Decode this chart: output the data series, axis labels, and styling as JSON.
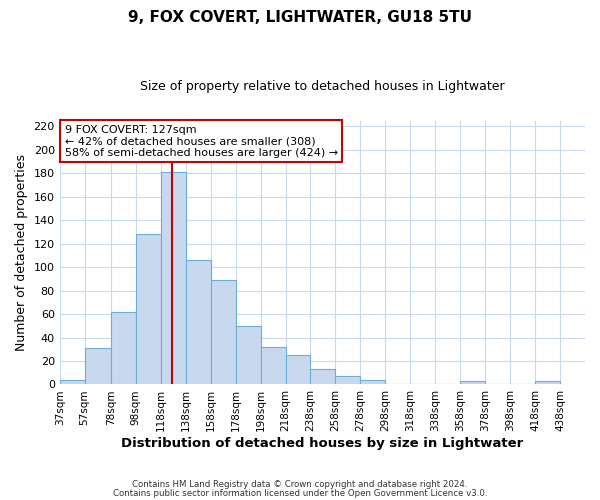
{
  "title": "9, FOX COVERT, LIGHTWATER, GU18 5TU",
  "subtitle": "Size of property relative to detached houses in Lightwater",
  "xlabel": "Distribution of detached houses by size in Lightwater",
  "ylabel": "Number of detached properties",
  "bin_labels": [
    "37sqm",
    "57sqm",
    "78sqm",
    "98sqm",
    "118sqm",
    "138sqm",
    "158sqm",
    "178sqm",
    "198sqm",
    "218sqm",
    "238sqm",
    "258sqm",
    "278sqm",
    "298sqm",
    "318sqm",
    "338sqm",
    "358sqm",
    "378sqm",
    "398sqm",
    "418sqm",
    "438sqm"
  ],
  "bin_edges": [
    37,
    57,
    78,
    98,
    118,
    138,
    158,
    178,
    198,
    218,
    238,
    258,
    278,
    298,
    318,
    338,
    358,
    378,
    398,
    418,
    438
  ],
  "bar_heights": [
    4,
    31,
    62,
    128,
    181,
    106,
    89,
    50,
    32,
    25,
    13,
    7,
    4,
    0,
    0,
    0,
    3,
    0,
    0,
    3
  ],
  "bar_color": "#c8d9ef",
  "bar_edgecolor": "#6baed6",
  "vline_x": 127,
  "vline_color": "#cc0000",
  "ylim": [
    0,
    225
  ],
  "yticks": [
    0,
    20,
    40,
    60,
    80,
    100,
    120,
    140,
    160,
    180,
    200,
    220
  ],
  "annotation_title": "9 FOX COVERT: 127sqm",
  "annotation_line1": "← 42% of detached houses are smaller (308)",
  "annotation_line2": "58% of semi-detached houses are larger (424) →",
  "annotation_box_color": "#ffffff",
  "annotation_box_edgecolor": "#cc0000",
  "footer_line1": "Contains HM Land Registry data © Crown copyright and database right 2024.",
  "footer_line2": "Contains public sector information licensed under the Open Government Licence v3.0.",
  "background_color": "#ffffff",
  "grid_color": "#c8d9ef"
}
